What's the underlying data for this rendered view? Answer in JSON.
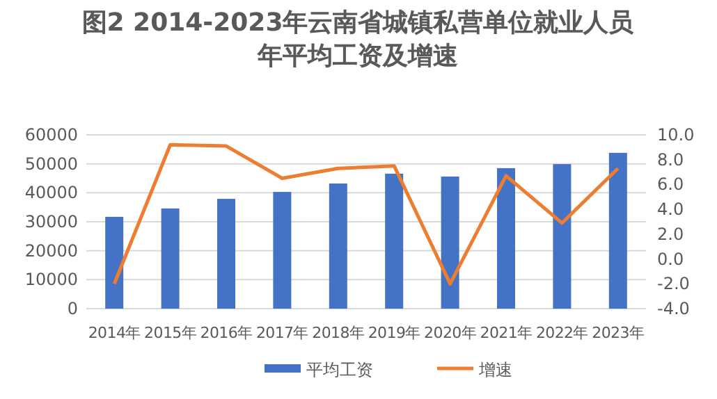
{
  "chart_data": {
    "type": "bar",
    "title": "图2  2014-2023年云南省城镇私营单位就业人员年平均工资及增速",
    "categories": [
      "2014年",
      "2015年",
      "2016年",
      "2017年",
      "2018年",
      "2019年",
      "2020年",
      "2021年",
      "2022年",
      "2023年"
    ],
    "series": [
      {
        "name": "平均工资",
        "axis": "y",
        "color": "#4472c4",
        "values": [
          31700,
          34600,
          37900,
          40300,
          43200,
          46600,
          45600,
          48500,
          49900,
          53800
        ]
      },
      {
        "name": "增速",
        "type": "line",
        "axis": "y2",
        "color": "#ed7d31",
        "values": [
          -2.0,
          9.2,
          9.1,
          6.5,
          7.3,
          7.5,
          -2.0,
          6.7,
          2.9,
          7.3
        ]
      }
    ],
    "ylim": [
      0,
      60000
    ],
    "yticks": [
      0,
      10000,
      20000,
      30000,
      40000,
      50000,
      60000
    ],
    "y2lim": [
      -4,
      10
    ],
    "y2ticks": [
      {
        "value": -4,
        "label": "-4.0"
      },
      {
        "value": -2,
        "label": "-2.0"
      },
      {
        "value": 0,
        "label": "0.0"
      },
      {
        "value": 2,
        "label": "2.0"
      },
      {
        "value": 4,
        "label": "4.0"
      },
      {
        "value": 6,
        "label": "6.0"
      },
      {
        "value": 8,
        "label": "8.0"
      },
      {
        "value": 10,
        "label": "10.0"
      }
    ],
    "grid": "y",
    "legend": "bottom"
  }
}
